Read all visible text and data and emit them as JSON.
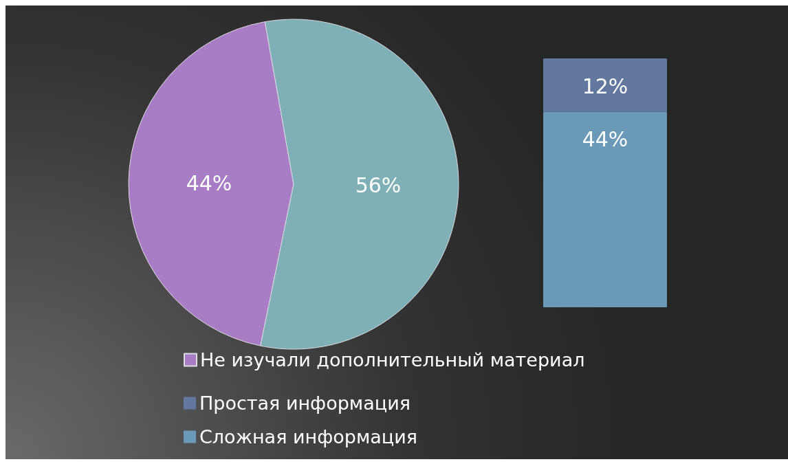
{
  "chart_data": [
    {
      "type": "pie",
      "categories": [
        "Не изучали дополнительный материал",
        null
      ],
      "values": [
        44,
        56
      ],
      "colors": [
        "#a87dc6",
        "#7fafb7"
      ],
      "value_labels": [
        "44%",
        "56%"
      ],
      "legend": "bottom"
    },
    {
      "type": "bar",
      "stacked": true,
      "categories": [
        null
      ],
      "series": [
        {
          "name": "Сложная информация",
          "color": "#6a9ab8",
          "values": [
            44
          ],
          "value_labels": [
            "44%"
          ]
        },
        {
          "name": "Простая информация",
          "color": "#63789f",
          "values": [
            12
          ],
          "value_labels": [
            "12%"
          ]
        }
      ],
      "legend": "bottom"
    }
  ]
}
